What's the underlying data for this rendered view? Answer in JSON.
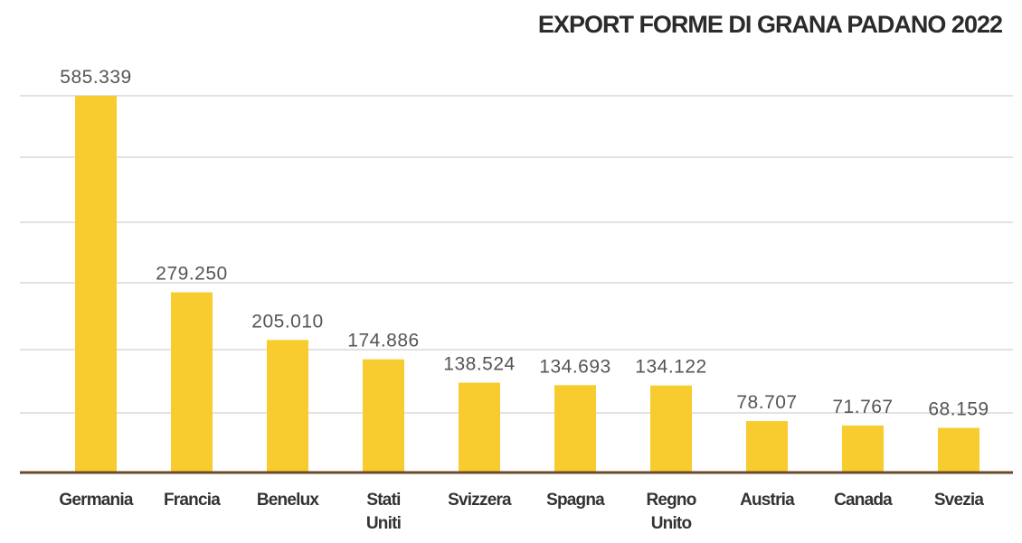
{
  "chart_data": {
    "type": "bar",
    "title": "EXPORT FORME DI GRANA PADANO 2022",
    "categories": [
      "Germania",
      "Francia",
      "Benelux",
      "Stati\nUniti",
      "Svizzera",
      "Spagna",
      "Regno\nUnito",
      "Austria",
      "Canada",
      "Svezia"
    ],
    "values": [
      585339,
      279250,
      205010,
      174886,
      138524,
      134693,
      134122,
      78707,
      71767,
      68159
    ],
    "value_labels": [
      "585.339",
      "279.250",
      "205.010",
      "174.886",
      "138.524",
      "134.693",
      "134.122",
      "78.707",
      "71.767",
      "68.159"
    ],
    "color": "#f8cb2e",
    "ylim": [
      0,
      600000
    ]
  }
}
